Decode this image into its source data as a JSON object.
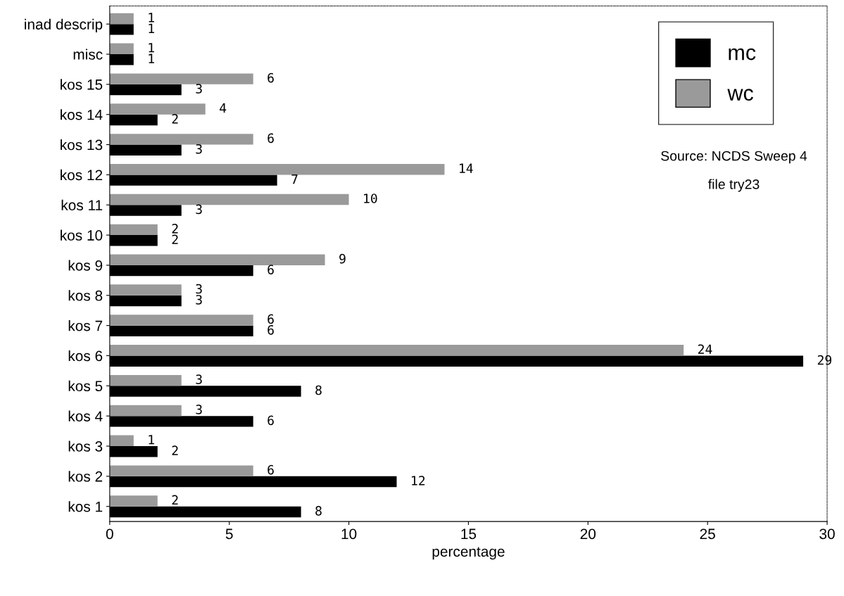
{
  "chart_data": {
    "type": "bar",
    "orientation": "horizontal",
    "xlabel": "percentage",
    "categories": [
      "inad descrip",
      "misc",
      "kos 15",
      "kos 14",
      "kos 13",
      "kos 12",
      "kos 11",
      "kos 10",
      "kos 9",
      "kos 8",
      "kos 7",
      "kos 6",
      "kos 5",
      "kos 4",
      "kos 3",
      "kos 2",
      "kos 1"
    ],
    "series": [
      {
        "name": "mc",
        "color": "#000000",
        "values": [
          1,
          1,
          3,
          2,
          3,
          7,
          3,
          2,
          6,
          3,
          6,
          29,
          8,
          6,
          2,
          12,
          8
        ]
      },
      {
        "name": "wc",
        "color": "#9a9a9a",
        "values": [
          1,
          1,
          6,
          4,
          6,
          14,
          10,
          2,
          9,
          3,
          6,
          24,
          3,
          3,
          1,
          6,
          2
        ]
      }
    ],
    "xlim": [
      0,
      30
    ],
    "xticks": [
      0,
      5,
      10,
      15,
      20,
      25,
      30
    ],
    "data_labels": true,
    "legend": "top right",
    "grid": false,
    "annotations": [
      "Source: NCDS Sweep 4",
      "file try23"
    ]
  }
}
